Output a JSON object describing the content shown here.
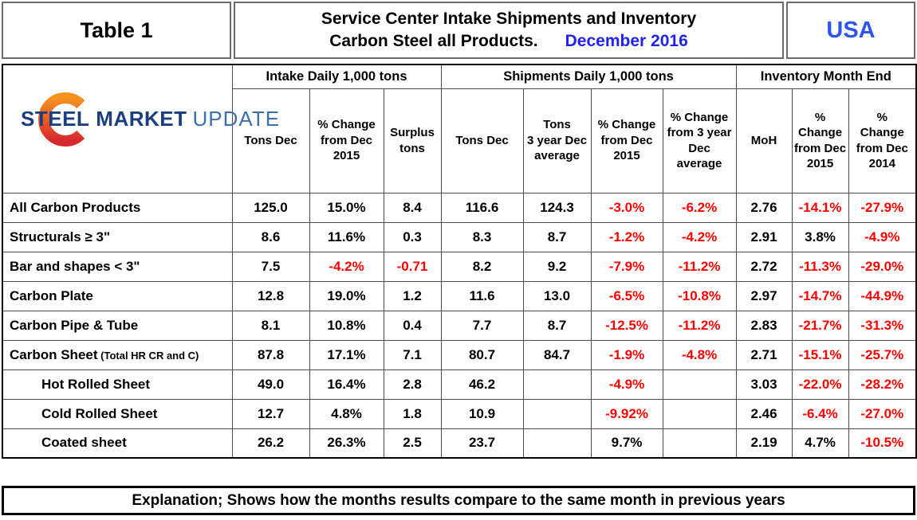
{
  "header": {
    "table_label": "Table 1",
    "title_line1": "Service Center Intake Shipments and Inventory",
    "title_line2": "Carbon Steel all Products.",
    "title_date": "December 2016",
    "region": "USA",
    "date_color": "#2222EE",
    "region_color": "#2F55EA"
  },
  "logo": {
    "word1": "STEEL",
    "word2": "MARKET",
    "word3": "UPDATE",
    "navy": "#1A3E7E",
    "light_blue": "#3B6FAE",
    "ring_top": "#F6921E",
    "ring_bottom": "#D7282F"
  },
  "chart_data": {
    "type": "table",
    "title": "Service Center Intake Shipments and Inventory Carbon Steel all Products. December 2016",
    "negative_color": "#FF0000",
    "groups": [
      {
        "label": "Intake Daily 1,000 tons",
        "span": 3
      },
      {
        "label": "Shipments Daily 1,000 tons",
        "span": 4
      },
      {
        "label": "Inventory Month End",
        "span": 3
      }
    ],
    "columns": [
      "Tons Dec",
      "% Change\nfrom Dec\n2015",
      "Surplus\ntons",
      "Tons Dec",
      "Tons\n3 year Dec\naverage",
      "% Change\nfrom Dec\n2015",
      "% Change\nfrom 3 year\nDec\naverage",
      "MoH",
      "%\nChange\nfrom Dec\n2015",
      "%\nChange\nfrom Dec\n2014"
    ],
    "rows": [
      {
        "label": "All Carbon Products",
        "note": "",
        "indent": false,
        "values": [
          "125.0",
          "15.0%",
          "8.4",
          "116.6",
          "124.3",
          "-3.0%",
          "-6.2%",
          "2.76",
          "-14.1%",
          "-27.9%"
        ]
      },
      {
        "label": "Structurals ≥ 3\"",
        "note": "",
        "indent": false,
        "values": [
          "8.6",
          "11.6%",
          "0.3",
          "8.3",
          "8.7",
          "-1.2%",
          "-4.2%",
          "2.91",
          "3.8%",
          "-4.9%"
        ]
      },
      {
        "label": "Bar and shapes < 3\"",
        "note": "",
        "indent": false,
        "values": [
          "7.5",
          "-4.2%",
          "-0.71",
          "8.2",
          "9.2",
          "-7.9%",
          "-11.2%",
          "2.72",
          "-11.3%",
          "-29.0%"
        ]
      },
      {
        "label": "Carbon Plate",
        "note": "",
        "indent": false,
        "values": [
          "12.8",
          "19.0%",
          "1.2",
          "11.6",
          "13.0",
          "-6.5%",
          "-10.8%",
          "2.97",
          "-14.7%",
          "-44.9%"
        ]
      },
      {
        "label": "Carbon Pipe & Tube",
        "note": "",
        "indent": false,
        "values": [
          "8.1",
          "10.8%",
          "0.4",
          "7.7",
          "8.7",
          "-12.5%",
          "-11.2%",
          "2.83",
          "-21.7%",
          "-31.3%"
        ]
      },
      {
        "label": "Carbon Sheet",
        "note": "(Total HR CR and C)",
        "indent": false,
        "values": [
          "87.8",
          "17.1%",
          "7.1",
          "80.7",
          "84.7",
          "-1.9%",
          "-4.8%",
          "2.71",
          "-15.1%",
          "-25.7%"
        ]
      },
      {
        "label": "Hot Rolled Sheet",
        "note": "",
        "indent": true,
        "values": [
          "49.0",
          "16.4%",
          "2.8",
          "46.2",
          "",
          "-4.9%",
          "",
          "3.03",
          "-22.0%",
          "-28.2%"
        ]
      },
      {
        "label": "Cold Rolled Sheet",
        "note": "",
        "indent": true,
        "values": [
          "12.7",
          "4.8%",
          "1.8",
          "10.9",
          "",
          "-9.92%",
          "",
          "2.46",
          "-6.4%",
          "-27.0%"
        ]
      },
      {
        "label": "Coated sheet",
        "note": "",
        "indent": true,
        "values": [
          "26.2",
          "26.3%",
          "2.5",
          "23.7",
          "",
          "9.7%",
          "",
          "2.19",
          "4.7%",
          "-10.5%"
        ]
      }
    ]
  },
  "footer": {
    "explanation": "Explanation; Shows how the months results compare to the same month in previous years"
  }
}
